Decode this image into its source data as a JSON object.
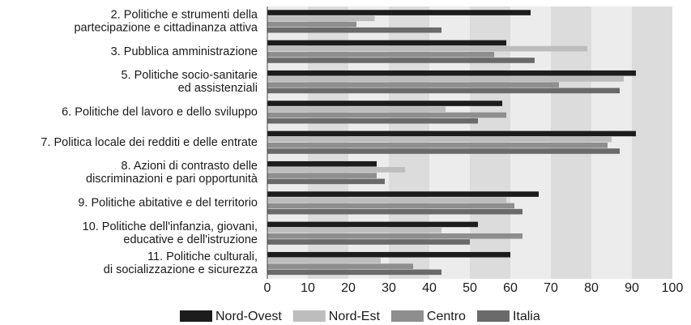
{
  "chart_data": {
    "type": "hbar",
    "categories": [
      [
        "2. Politiche e strumenti della",
        "partecipazione e cittadinanza attiva"
      ],
      [
        "3. Pubblica amministrazione"
      ],
      [
        "5. Politiche socio-sanitarie",
        "ed assistenziali"
      ],
      [
        "6. Politiche del lavoro e dello sviluppo"
      ],
      [
        "7. Politica locale dei redditi e delle entrate"
      ],
      [
        "8. Azioni di contrasto delle",
        "discriminazioni e pari opportunità"
      ],
      [
        "9. Politiche abitative e del territorio"
      ],
      [
        "10. Politiche dell'infanzia, giovani,",
        "educative e dell'istruzione"
      ],
      [
        "11. Politiche culturali,",
        "di socializzazione e sicurezza"
      ]
    ],
    "series": [
      {
        "name": "Nord-Ovest",
        "color": "#1c1c1c",
        "values": [
          65,
          59,
          91,
          58,
          91,
          27,
          67,
          52,
          60
        ]
      },
      {
        "name": "Nord-Est",
        "color": "#bdbdbd",
        "values": [
          26.5,
          79,
          88,
          44,
          85,
          34,
          59,
          43,
          28
        ]
      },
      {
        "name": "Centro",
        "color": "#8e8e8e",
        "values": [
          22,
          56,
          72,
          59,
          84,
          27,
          61,
          63,
          36
        ]
      },
      {
        "name": "Italia",
        "color": "#6a6a6a",
        "values": [
          43,
          66,
          87,
          52,
          87,
          29,
          63,
          50,
          43
        ]
      }
    ],
    "xlim": [
      0,
      100
    ],
    "xticks": [
      0,
      10,
      20,
      30,
      40,
      50,
      60,
      70,
      80,
      90,
      100
    ],
    "grid": true
  }
}
